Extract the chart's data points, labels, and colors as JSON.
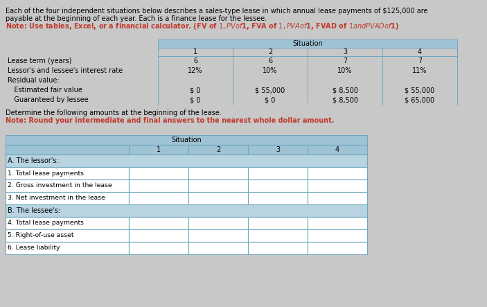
{
  "fig_bg": "#c8c8c8",
  "header_lines": [
    "Each of the four independent situations below describes a sales-type lease in which annual lease payments of $125,000 are",
    "payable at the beginning of each year. Each is a finance lease for the lessee.",
    "Note: Use tables, Excel, or a financial calculator. (FV of $1, PV of $1, FVA of $1, PVA of $1, FVAD of $1 and PVAD of $1)"
  ],
  "top_table_rows": [
    [
      "Lease term (years)",
      "6",
      "6",
      "7",
      "7"
    ],
    [
      "Lessor's and lessee's interest rate",
      "12%",
      "10%",
      "10%",
      "11%"
    ],
    [
      "Residual value:",
      "",
      "",
      "",
      ""
    ],
    [
      "   Estimated fair value",
      "$ 0",
      "$ 55,000",
      "$ 8,500",
      "$ 55,000"
    ],
    [
      "   Guaranteed by lessee",
      "$ 0",
      "$ 0",
      "$ 8,500",
      "$ 65,000"
    ]
  ],
  "mid_lines": [
    "Determine the following amounts at the beginning of the lease.",
    "Note: Round your intermediate and final answers to the nearest whole dollar amount."
  ],
  "bottom_sections": [
    {
      "label": "A. The lessor's:",
      "rows": [
        "1. Total lease payments",
        "2. Gross investment in the lease",
        "3. Net investment in the lease"
      ]
    },
    {
      "label": "B. The lessee's:",
      "rows": [
        "4. Total lease payments",
        "5. Right-of-use asset",
        "6. Lease liability"
      ]
    }
  ],
  "situation_cols": [
    "1",
    "2",
    "3",
    "4"
  ],
  "table_hdr_bg": "#9dc3d4",
  "table_subhdr_bg": "#b8d4e0",
  "table_row_bg": "#ffffff",
  "table_section_hdr_bg": "#b8d4e0",
  "table_border": "#6fa8c0",
  "note_color": "#c0392b",
  "text_color": "#000000",
  "font_size": 7.0
}
